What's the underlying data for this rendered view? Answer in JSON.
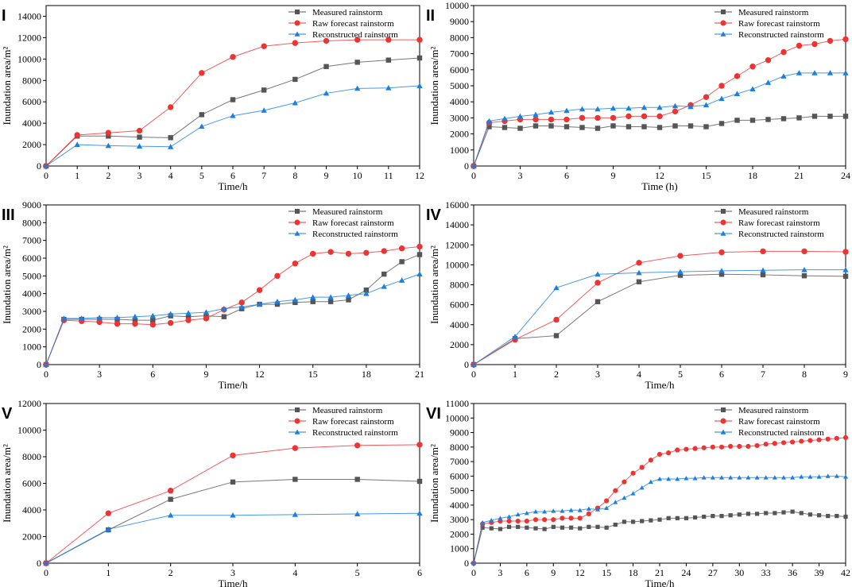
{
  "series_names": [
    "Measured rainstorm",
    "Raw forecast rainstorm",
    "Reconstructed rainstorm"
  ],
  "colors": {
    "measured": "#555555",
    "raw": "#ee3333",
    "recon": "#1a7fe0"
  },
  "chart_data": [
    {
      "panel": "I",
      "type": "line",
      "xlabel": "Time/h",
      "ylabel": "Inundation area/m²",
      "xlim": [
        0,
        12
      ],
      "ylim": [
        0,
        15000
      ],
      "xticks": [
        0,
        1,
        2,
        3,
        4,
        5,
        6,
        7,
        8,
        9,
        10,
        11,
        12
      ],
      "yticks": [
        0,
        2000,
        4000,
        6000,
        8000,
        10000,
        12000,
        14000
      ],
      "legend": "top-right",
      "x": [
        0,
        1,
        2,
        3,
        4,
        5,
        6,
        7,
        8,
        9,
        10,
        11,
        12
      ],
      "series": [
        {
          "name": "Measured rainstorm",
          "values": [
            0,
            2800,
            2800,
            2700,
            2650,
            4800,
            6200,
            7100,
            8100,
            9300,
            9700,
            9900,
            10100
          ]
        },
        {
          "name": "Raw forecast rainstorm",
          "values": [
            0,
            2900,
            3100,
            3300,
            5500,
            8700,
            10200,
            11200,
            11500,
            11700,
            11800,
            11800,
            11800
          ]
        },
        {
          "name": "Reconstructed rainstorm",
          "values": [
            0,
            2000,
            1900,
            1850,
            1800,
            3700,
            4700,
            5200,
            5900,
            6800,
            7250,
            7300,
            7500
          ]
        }
      ]
    },
    {
      "panel": "II",
      "type": "line",
      "xlabel": "Time (h)",
      "ylabel": "Inundation area/m²",
      "xlim": [
        0,
        24
      ],
      "ylim": [
        0,
        10000
      ],
      "xticks": [
        0,
        3,
        6,
        9,
        12,
        15,
        18,
        21,
        24
      ],
      "yticks": [
        0,
        1000,
        2000,
        3000,
        4000,
        5000,
        6000,
        7000,
        8000,
        9000,
        10000
      ],
      "legend": "top-right",
      "x": [
        0,
        1,
        2,
        3,
        4,
        5,
        6,
        7,
        8,
        9,
        10,
        11,
        12,
        13,
        14,
        15,
        16,
        17,
        18,
        19,
        20,
        21,
        22,
        23,
        24
      ],
      "series": [
        {
          "name": "Measured rainstorm",
          "values": [
            0,
            2450,
            2400,
            2350,
            2500,
            2500,
            2450,
            2400,
            2350,
            2500,
            2450,
            2450,
            2400,
            2500,
            2500,
            2450,
            2650,
            2850,
            2850,
            2900,
            2950,
            3000,
            3100,
            3100,
            3100
          ]
        },
        {
          "name": "Raw forecast rainstorm",
          "values": [
            0,
            2700,
            2800,
            2900,
            2900,
            2900,
            2900,
            3000,
            3000,
            3000,
            3100,
            3100,
            3100,
            3400,
            3800,
            4300,
            5000,
            5600,
            6200,
            6600,
            7100,
            7500,
            7600,
            7800,
            7900
          ]
        },
        {
          "name": "Reconstructed rainstorm",
          "values": [
            0,
            2800,
            2950,
            3100,
            3200,
            3350,
            3450,
            3550,
            3550,
            3600,
            3600,
            3650,
            3650,
            3750,
            3700,
            3800,
            4200,
            4500,
            4800,
            5200,
            5600,
            5800,
            5800,
            5800,
            5800
          ]
        }
      ]
    },
    {
      "panel": "III",
      "type": "line",
      "xlabel": "Time/h",
      "ylabel": "Inundation area/m²",
      "xlim": [
        0,
        21
      ],
      "ylim": [
        0,
        9000
      ],
      "xticks": [
        0,
        3,
        6,
        9,
        12,
        15,
        18,
        21
      ],
      "yticks": [
        0,
        1000,
        2000,
        3000,
        4000,
        5000,
        6000,
        7000,
        8000,
        9000
      ],
      "legend": "top-right",
      "x": [
        0,
        1,
        2,
        3,
        4,
        5,
        6,
        7,
        8,
        9,
        10,
        11,
        12,
        13,
        14,
        15,
        16,
        17,
        18,
        19,
        20,
        21
      ],
      "series": [
        {
          "name": "Measured rainstorm",
          "values": [
            0,
            2550,
            2550,
            2550,
            2550,
            2500,
            2500,
            2750,
            2700,
            2750,
            2700,
            3150,
            3400,
            3400,
            3500,
            3550,
            3550,
            3650,
            4200,
            5100,
            5800,
            6200
          ]
        },
        {
          "name": "Raw forecast rainstorm",
          "values": [
            0,
            2500,
            2450,
            2400,
            2300,
            2300,
            2250,
            2350,
            2500,
            2600,
            3100,
            3500,
            4200,
            5000,
            5700,
            6250,
            6350,
            6250,
            6300,
            6400,
            6550,
            6650
          ]
        },
        {
          "name": "Reconstructed rainstorm",
          "values": [
            0,
            2600,
            2600,
            2650,
            2650,
            2700,
            2750,
            2850,
            2900,
            2950,
            3150,
            3250,
            3400,
            3550,
            3650,
            3800,
            3800,
            3900,
            4000,
            4400,
            4750,
            5100
          ]
        }
      ]
    },
    {
      "panel": "IV",
      "type": "line",
      "xlabel": "Time/h",
      "ylabel": "Inundation area/m²",
      "xlim": [
        0,
        9
      ],
      "ylim": [
        0,
        16000
      ],
      "xticks": [
        0,
        1,
        2,
        3,
        4,
        5,
        6,
        7,
        8,
        9
      ],
      "yticks": [
        0,
        2000,
        4000,
        6000,
        8000,
        10000,
        12000,
        14000,
        16000
      ],
      "legend": "top-right",
      "x": [
        0,
        1,
        2,
        3,
        4,
        5,
        6,
        7,
        8,
        9
      ],
      "series": [
        {
          "name": "Measured rainstorm",
          "values": [
            0,
            2600,
            2900,
            6300,
            8300,
            8950,
            9050,
            9000,
            8900,
            8850
          ]
        },
        {
          "name": "Raw forecast rainstorm",
          "values": [
            0,
            2500,
            4500,
            8200,
            10200,
            10900,
            11250,
            11350,
            11350,
            11300
          ]
        },
        {
          "name": "Reconstructed rainstorm",
          "values": [
            0,
            2800,
            7700,
            9050,
            9200,
            9300,
            9400,
            9450,
            9500,
            9500
          ]
        }
      ]
    },
    {
      "panel": "V",
      "type": "line",
      "xlabel": "Time/h",
      "ylabel": "Inundation area/m²",
      "xlim": [
        0,
        6
      ],
      "ylim": [
        0,
        12000
      ],
      "xticks": [
        0,
        1,
        2,
        3,
        4,
        5,
        6
      ],
      "yticks": [
        0,
        2000,
        4000,
        6000,
        8000,
        10000,
        12000
      ],
      "legend": "top-right",
      "x": [
        0,
        1,
        2,
        3,
        4,
        5,
        6
      ],
      "series": [
        {
          "name": "Measured rainstorm",
          "values": [
            0,
            2500,
            4800,
            6100,
            6300,
            6300,
            6150
          ]
        },
        {
          "name": "Raw forecast rainstorm",
          "values": [
            0,
            3750,
            5450,
            8100,
            8650,
            8850,
            8900
          ]
        },
        {
          "name": "Reconstructed rainstorm",
          "values": [
            0,
            2550,
            3600,
            3600,
            3650,
            3700,
            3750
          ]
        }
      ]
    },
    {
      "panel": "VI",
      "type": "line",
      "xlabel": "Time/h",
      "ylabel": "Inundation area/m²",
      "xlim": [
        0,
        42
      ],
      "ylim": [
        0,
        11000
      ],
      "xticks": [
        0,
        3,
        6,
        9,
        12,
        15,
        18,
        21,
        24,
        27,
        30,
        33,
        36,
        39,
        42
      ],
      "yticks": [
        0,
        1000,
        2000,
        3000,
        4000,
        5000,
        6000,
        7000,
        8000,
        9000,
        10000,
        11000
      ],
      "legend": "top-right",
      "x": [
        0,
        1,
        2,
        3,
        4,
        5,
        6,
        7,
        8,
        9,
        10,
        11,
        12,
        13,
        14,
        15,
        16,
        17,
        18,
        19,
        20,
        21,
        22,
        23,
        24,
        25,
        26,
        27,
        28,
        29,
        30,
        31,
        32,
        33,
        34,
        35,
        36,
        37,
        38,
        39,
        40,
        41,
        42
      ],
      "series": [
        {
          "name": "Measured rainstorm",
          "values": [
            0,
            2450,
            2400,
            2350,
            2500,
            2500,
            2450,
            2400,
            2350,
            2500,
            2450,
            2450,
            2400,
            2500,
            2500,
            2450,
            2650,
            2850,
            2850,
            2900,
            2950,
            3000,
            3100,
            3100,
            3100,
            3150,
            3200,
            3250,
            3250,
            3300,
            3350,
            3400,
            3400,
            3450,
            3450,
            3500,
            3550,
            3450,
            3350,
            3300,
            3250,
            3250,
            3200
          ]
        },
        {
          "name": "Raw forecast rainstorm",
          "values": [
            0,
            2700,
            2800,
            2900,
            2900,
            2900,
            2900,
            3000,
            3000,
            3000,
            3100,
            3100,
            3100,
            3400,
            3800,
            4300,
            5000,
            5600,
            6200,
            6600,
            7100,
            7500,
            7600,
            7800,
            7850,
            7900,
            7950,
            8000,
            8000,
            8050,
            8050,
            8050,
            8100,
            8200,
            8250,
            8300,
            8350,
            8400,
            8450,
            8500,
            8550,
            8600,
            8650
          ]
        },
        {
          "name": "Reconstructed rainstorm",
          "values": [
            0,
            2800,
            2950,
            3100,
            3200,
            3350,
            3450,
            3550,
            3550,
            3600,
            3600,
            3650,
            3650,
            3750,
            3700,
            3800,
            4200,
            4500,
            4800,
            5200,
            5600,
            5800,
            5800,
            5800,
            5850,
            5850,
            5900,
            5900,
            5900,
            5900,
            5900,
            5900,
            5900,
            5900,
            5900,
            5900,
            5900,
            5950,
            5950,
            5950,
            6000,
            6000,
            5950
          ]
        }
      ]
    }
  ]
}
